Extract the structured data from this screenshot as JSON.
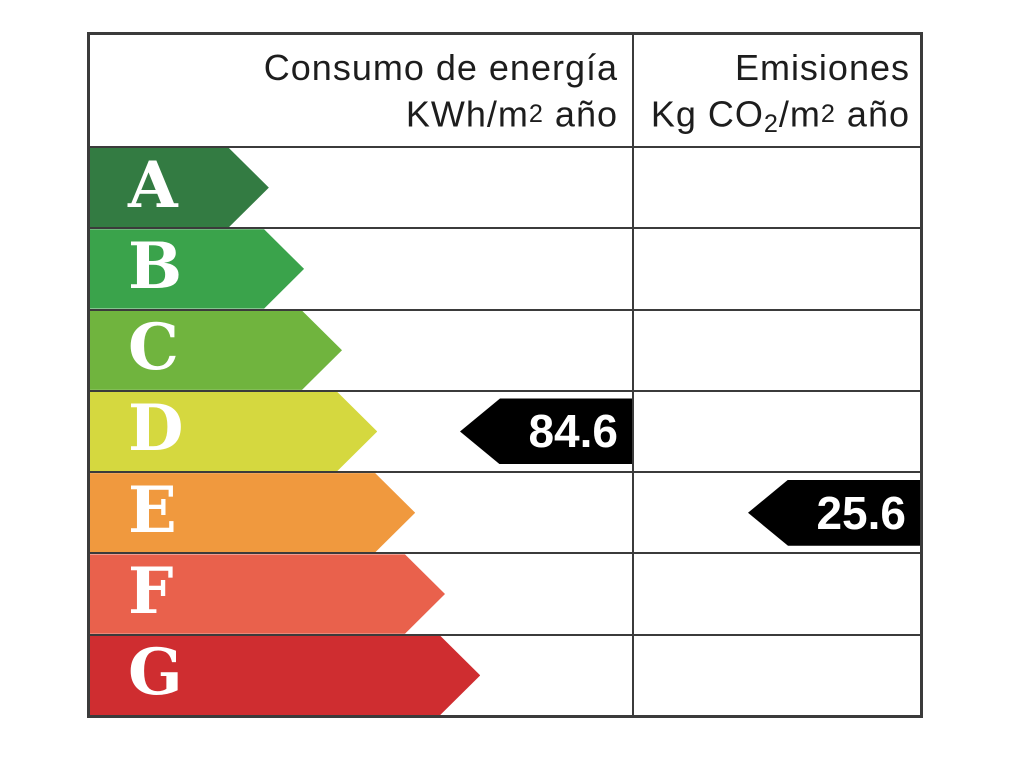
{
  "header": {
    "energy": {
      "title": "Consumo de energía",
      "unit_pre": "KWh/m",
      "unit_exp": "2",
      "unit_post": " año"
    },
    "emissions": {
      "title": "Emisiones",
      "unit_pre": "Kg CO",
      "unit_sub": "2",
      "unit_mid": "/m",
      "unit_exp": "2",
      "unit_post": " año"
    }
  },
  "colors": {
    "background": "#ffffff",
    "border": "#3b3b3b",
    "header_text": "#1d1d1d",
    "letter_text": "#ffffff"
  },
  "chart_data": {
    "type": "bar",
    "orientation": "horizontal",
    "title": "",
    "columns": [
      {
        "key": "energy",
        "label": "Consumo de energía KWh/m2 año",
        "marker": {
          "rating": "D",
          "value": 84.6
        }
      },
      {
        "key": "emissions",
        "label": "Emisiones Kg CO2/m2 año",
        "marker": {
          "rating": "E",
          "value": 25.6
        }
      }
    ],
    "categories": [
      "A",
      "B",
      "C",
      "D",
      "E",
      "F",
      "G"
    ],
    "bars": [
      {
        "letter": "A",
        "color": "#337b42",
        "length_pct": 33
      },
      {
        "letter": "B",
        "color": "#3aa34b",
        "length_pct": 39.5
      },
      {
        "letter": "C",
        "color": "#70b43e",
        "length_pct": 46.5
      },
      {
        "letter": "D",
        "color": "#d5d83f",
        "length_pct": 53
      },
      {
        "letter": "E",
        "color": "#f0993e",
        "length_pct": 60
      },
      {
        "letter": "F",
        "color": "#e9614c",
        "length_pct": 65.5
      },
      {
        "letter": "G",
        "color": "#cf2d30",
        "length_pct": 72
      }
    ],
    "marker_color": "#000000",
    "marker_text_color": "#ffffff",
    "grid": true,
    "legend": false
  }
}
